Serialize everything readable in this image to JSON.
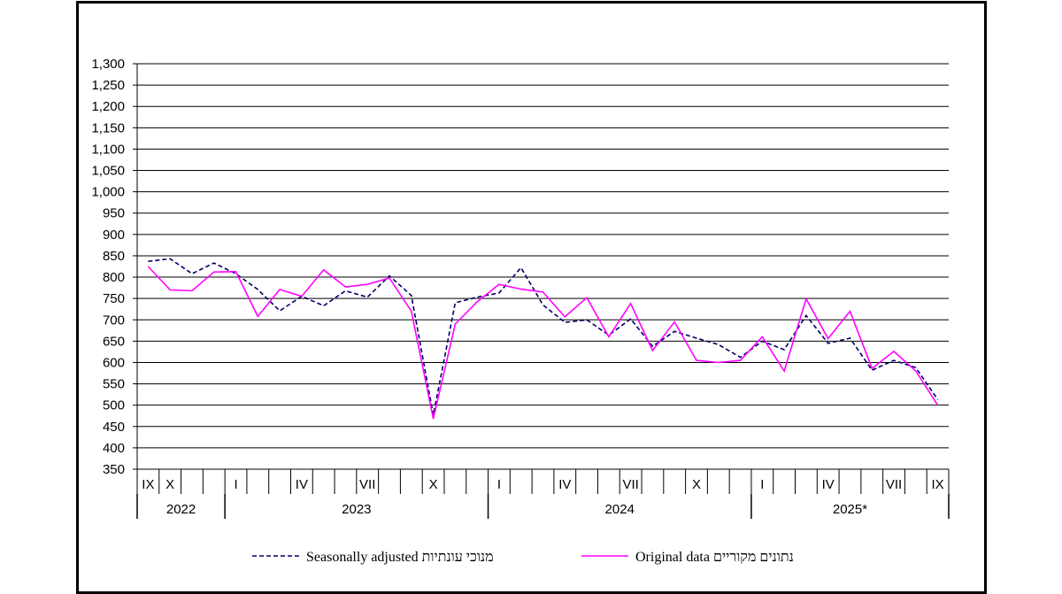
{
  "chart_data": {
    "type": "line",
    "ylim": [
      350,
      1300
    ],
    "ystep": 50,
    "grid": true,
    "y_ticks": [
      "350",
      "400",
      "450",
      "500",
      "550",
      "600",
      "650",
      "700",
      "750",
      "800",
      "850",
      "900",
      "950",
      "1,000",
      "1,050",
      "1,100",
      "1,150",
      "1,200",
      "1,250",
      "1,300"
    ],
    "month_labels": [
      {
        "idx": 0,
        "text": "IX"
      },
      {
        "idx": 1,
        "text": "X"
      },
      {
        "idx": 4,
        "text": "I"
      },
      {
        "idx": 7,
        "text": "IV"
      },
      {
        "idx": 10,
        "text": "VII"
      },
      {
        "idx": 13,
        "text": "X"
      },
      {
        "idx": 16,
        "text": "I"
      },
      {
        "idx": 19,
        "text": "IV"
      },
      {
        "idx": 22,
        "text": "VII"
      },
      {
        "idx": 25,
        "text": "X"
      },
      {
        "idx": 28,
        "text": "I"
      },
      {
        "idx": 31,
        "text": "IV"
      },
      {
        "idx": 34,
        "text": "VII"
      },
      {
        "idx": 36,
        "text": "IX"
      }
    ],
    "years": [
      {
        "text": "2022",
        "start": 0,
        "end": 4
      },
      {
        "text": "2023",
        "start": 4,
        "end": 16
      },
      {
        "text": "2024",
        "start": 16,
        "end": 28
      },
      {
        "text": "2025*",
        "start": 28,
        "end": 37
      }
    ],
    "legend_placement": "bottom",
    "series": [
      {
        "name": "Seasonally adjusted מנוכי עונתיות",
        "color": "#000066",
        "style": "dashed",
        "values": [
          837,
          843,
          808,
          833,
          808,
          771,
          721,
          755,
          733,
          768,
          753,
          803,
          757,
          477,
          740,
          753,
          763,
          822,
          735,
          694,
          700,
          664,
          702,
          638,
          673,
          657,
          642,
          612,
          650,
          630,
          710,
          645,
          657,
          582,
          605,
          588,
          513
        ]
      },
      {
        "name": "Original data נתונים מקוריים",
        "color": "#ff00ff",
        "style": "solid",
        "values": [
          825,
          770,
          768,
          812,
          813,
          708,
          771,
          755,
          817,
          777,
          783,
          798,
          720,
          468,
          690,
          742,
          783,
          772,
          765,
          707,
          752,
          660,
          738,
          628,
          695,
          605,
          600,
          605,
          660,
          580,
          749,
          656,
          720,
          586,
          626,
          580,
          500
        ]
      }
    ]
  }
}
